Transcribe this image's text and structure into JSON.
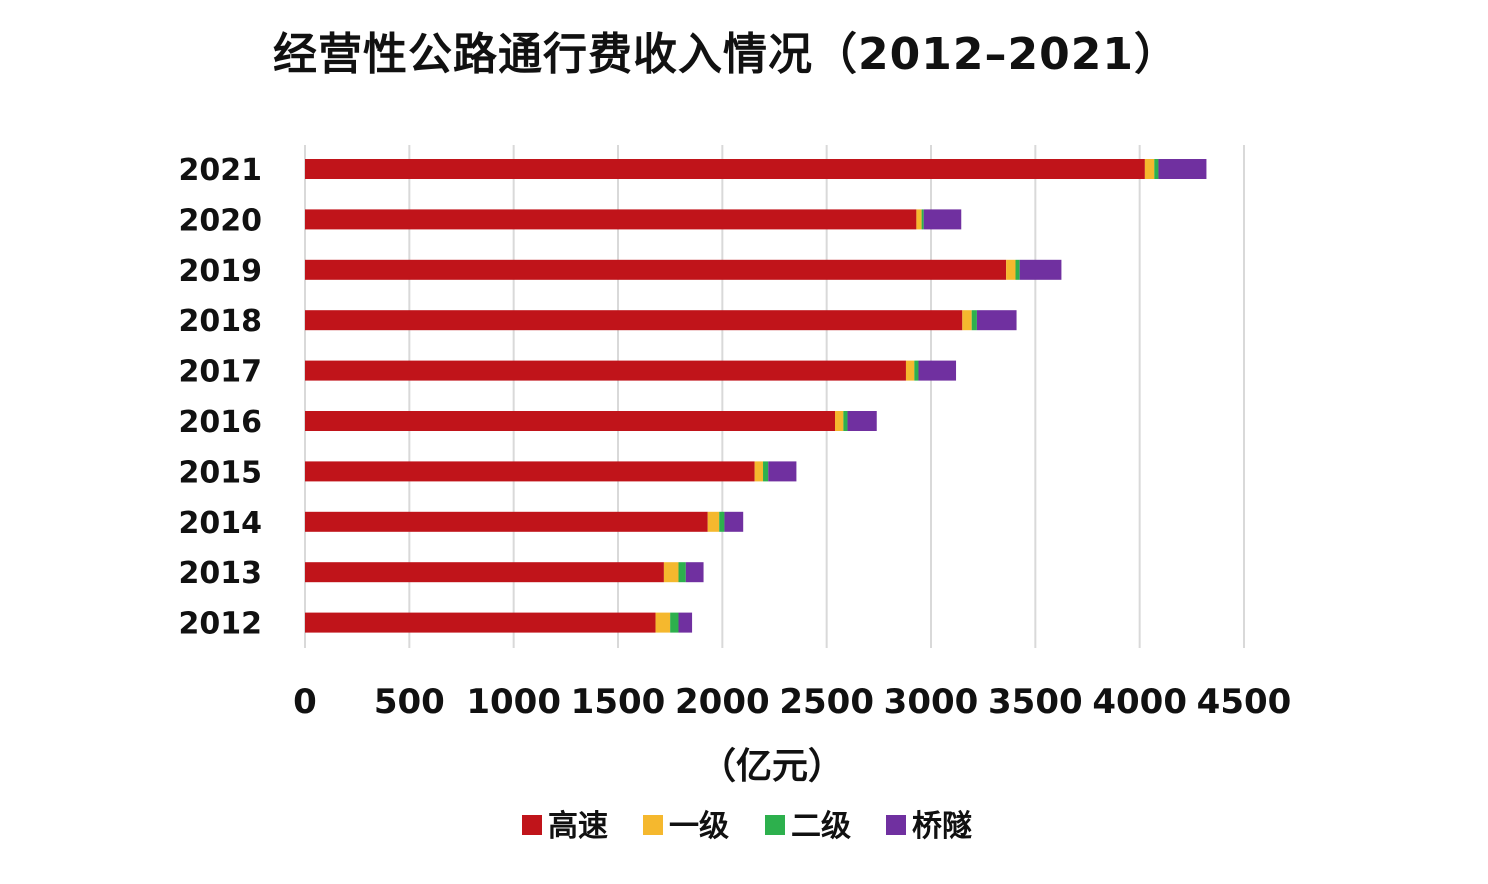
{
  "chart_data": {
    "type": "bar",
    "orientation": "horizontal",
    "stacked": true,
    "title": "经营性公路通行费收入情况（2012–2021）",
    "xlabel": "（亿元）",
    "ylabel": "",
    "xlim": [
      0,
      4500
    ],
    "x_ticks": [
      "0",
      "500",
      "1000",
      "1500",
      "2000",
      "2500",
      "3000",
      "3500",
      "4000",
      "4500"
    ],
    "grid": "vertical",
    "legend_position": "bottom",
    "categories": [
      "2021",
      "2020",
      "2019",
      "2018",
      "2017",
      "2016",
      "2015",
      "2014",
      "2013",
      "2012"
    ],
    "series": [
      {
        "name": "高速",
        "color": "#c0141a",
        "values": [
          4025,
          2930,
          3360,
          3150,
          2880,
          2540,
          2155,
          1930,
          1720,
          1680
        ]
      },
      {
        "name": "一级",
        "color": "#f5b82e",
        "values": [
          45,
          25,
          45,
          45,
          40,
          40,
          40,
          55,
          70,
          70
        ]
      },
      {
        "name": "二级",
        "color": "#2db04d",
        "values": [
          20,
          10,
          20,
          25,
          20,
          20,
          25,
          25,
          35,
          40
        ]
      },
      {
        "name": "桥隧",
        "color": "#7030a0",
        "values": [
          230,
          180,
          200,
          190,
          180,
          140,
          135,
          90,
          85,
          65
        ]
      }
    ]
  }
}
